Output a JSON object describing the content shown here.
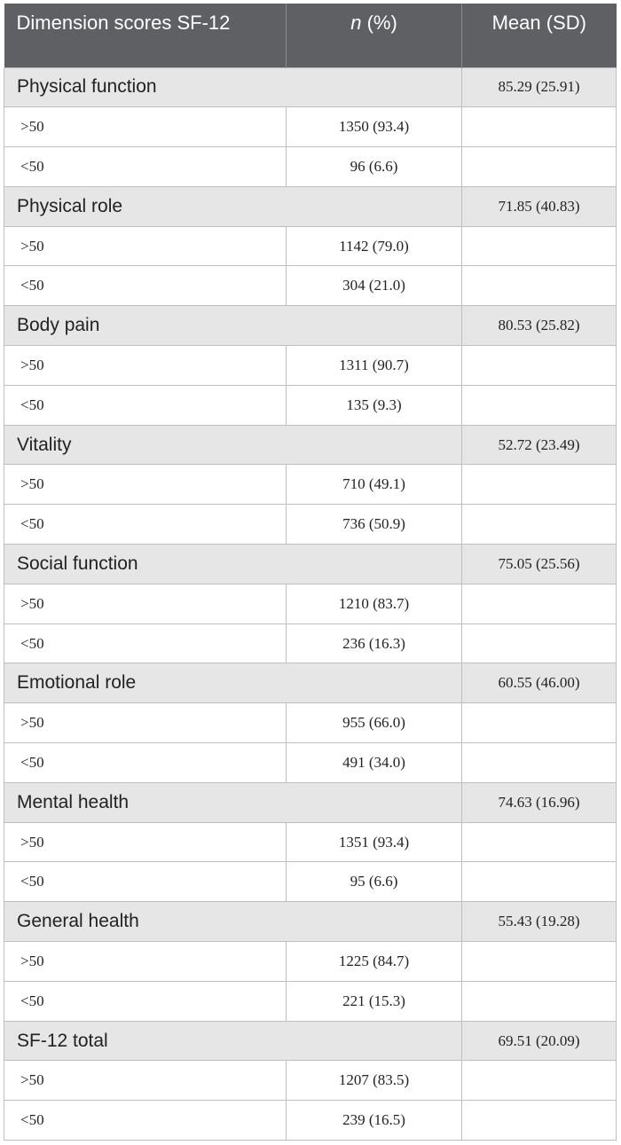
{
  "header": {
    "col1": "Dimension scores SF-12",
    "col2_italic": "n",
    "col2_rest": " (%)",
    "col3": "Mean (SD)"
  },
  "groups": [
    {
      "name": "Physical function",
      "mean": "85.29 (25.91)",
      "rows": [
        {
          "label": ">50",
          "n": "1350 (93.4)"
        },
        {
          "label": "<50",
          "n": "96 (6.6)"
        }
      ]
    },
    {
      "name": "Physical role",
      "mean": "71.85 (40.83)",
      "rows": [
        {
          "label": ">50",
          "n": "1142 (79.0)"
        },
        {
          "label": "<50",
          "n": "304 (21.0)"
        }
      ]
    },
    {
      "name": "Body pain",
      "mean": "80.53 (25.82)",
      "rows": [
        {
          "label": ">50",
          "n": "1311 (90.7)"
        },
        {
          "label": "<50",
          "n": "135 (9.3)"
        }
      ]
    },
    {
      "name": "Vitality",
      "mean": "52.72 (23.49)",
      "rows": [
        {
          "label": ">50",
          "n": "710 (49.1)"
        },
        {
          "label": "<50",
          "n": "736 (50.9)"
        }
      ]
    },
    {
      "name": "Social function",
      "mean": "75.05 (25.56)",
      "rows": [
        {
          "label": ">50",
          "n": "1210 (83.7)"
        },
        {
          "label": "<50",
          "n": "236 (16.3)"
        }
      ]
    },
    {
      "name": "Emotional role",
      "mean": "60.55 (46.00)",
      "rows": [
        {
          "label": ">50",
          "n": "955 (66.0)"
        },
        {
          "label": "<50",
          "n": "491 (34.0)"
        }
      ]
    },
    {
      "name": "Mental health",
      "mean": "74.63 (16.96)",
      "rows": [
        {
          "label": ">50",
          "n": "1351 (93.4)"
        },
        {
          "label": "<50",
          "n": "95 (6.6)"
        }
      ]
    },
    {
      "name": "General health",
      "mean": "55.43 (19.28)",
      "rows": [
        {
          "label": ">50",
          "n": "1225 (84.7)"
        },
        {
          "label": "<50",
          "n": "221 (15.3)"
        }
      ]
    },
    {
      "name": "SF-12 total",
      "mean": "69.51 (20.09)",
      "rows": [
        {
          "label": ">50",
          "n": "1207 (83.5)"
        },
        {
          "label": "<50",
          "n": "239 (16.5)"
        }
      ]
    }
  ]
}
